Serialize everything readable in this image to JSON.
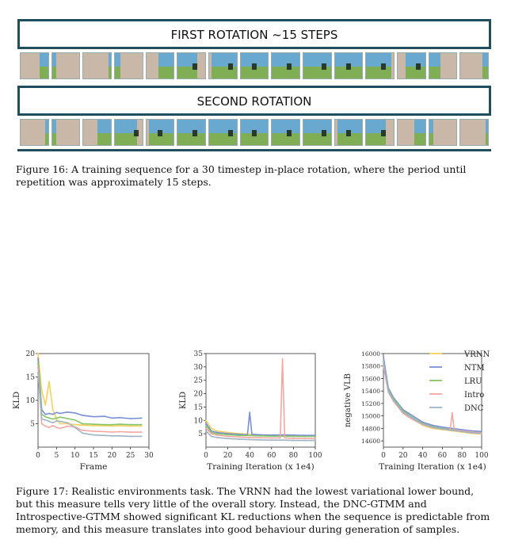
{
  "figure16": {
    "title1": "FIRST ROTATION ~15 STEPS",
    "title2": "SECOND ROTATION",
    "caption": "Figure 16: A training sequence for a 30 timestep in-place rotation, where the period until repetition was approximately 15 steps."
  },
  "figure17": {
    "caption": "Figure 17: Realistic environments task. The VRNN had the lowest variational lower bound, but this measure tells very little of the overall story. Instead, the DNC-GTMM and Introspective-GTMM showed significant KL reductions when the sequence is predictable from memory, and this measure translates into good behaviour during generation of samples."
  },
  "colors": {
    "VRNN": "#f3d15c",
    "NTM": "#7b8fd6",
    "LRU": "#86c56a",
    "Intro": "#f2a8a0",
    "DNC": "#9fb4c4",
    "spike": "#e64a3a"
  },
  "chart_data": [
    {
      "type": "line",
      "xlabel": "Frame",
      "ylabel": "KLD",
      "xlim": [
        0,
        30
      ],
      "ylim": [
        0,
        20
      ],
      "xticks": [
        "0",
        "5",
        "10",
        "15",
        "20",
        "25",
        "30"
      ],
      "yticks": [
        "5",
        "10",
        "15",
        "20"
      ],
      "series": [
        {
          "name": "VRNN",
          "x": [
            0,
            1,
            2,
            3,
            4,
            5,
            6,
            8,
            10,
            12,
            15,
            18,
            20,
            22,
            25,
            28
          ],
          "values": [
            20,
            12,
            9,
            14,
            8,
            6,
            5,
            5,
            4.8,
            4.7,
            4.6,
            4.6,
            4.5,
            4.6,
            4.5,
            4.5
          ]
        },
        {
          "name": "NTM",
          "x": [
            0,
            1,
            2,
            3,
            4,
            5,
            6,
            8,
            10,
            12,
            15,
            18,
            20,
            22,
            25,
            28
          ],
          "values": [
            19,
            8,
            7,
            7.2,
            7,
            7.4,
            7.2,
            7.5,
            7.3,
            6.8,
            6.5,
            6.6,
            6.2,
            6.3,
            6.1,
            6.2
          ]
        },
        {
          "name": "LRU",
          "x": [
            0,
            1,
            2,
            3,
            4,
            5,
            6,
            8,
            10,
            12,
            15,
            18,
            20,
            22,
            25,
            28
          ],
          "values": [
            18,
            7,
            6.5,
            6.2,
            6,
            6.2,
            6.4,
            6.1,
            5.8,
            5,
            4.9,
            4.8,
            4.8,
            4.9,
            4.8,
            4.8
          ]
        },
        {
          "name": "Intro",
          "x": [
            0,
            1,
            2,
            3,
            4,
            5,
            6,
            8,
            10,
            12,
            15,
            18,
            20,
            22,
            25,
            28
          ],
          "values": [
            17,
            5,
            4.5,
            4.2,
            4.6,
            4.2,
            4,
            4.5,
            4.3,
            3.6,
            3.4,
            3.3,
            3.2,
            3.3,
            3.2,
            3.2
          ]
        },
        {
          "name": "DNC",
          "x": [
            0,
            1,
            2,
            3,
            4,
            5,
            6,
            8,
            10,
            12,
            15,
            18,
            20,
            22,
            25,
            28
          ],
          "values": [
            16,
            6,
            5.8,
            5.5,
            5.2,
            5.6,
            5.5,
            5.2,
            4.2,
            3,
            2.6,
            2.5,
            2.4,
            2.4,
            2.3,
            2.3
          ]
        }
      ]
    },
    {
      "type": "line",
      "xlabel": "Training Iteration (x 1e4)",
      "ylabel": "KLD",
      "xlim": [
        0,
        100
      ],
      "ylim": [
        0,
        35
      ],
      "xticks": [
        "0",
        "20",
        "40",
        "60",
        "80",
        "100"
      ],
      "yticks": [
        "5",
        "10",
        "15",
        "20",
        "25",
        "30",
        "35"
      ],
      "series": [
        {
          "name": "VRNN",
          "x": [
            0,
            5,
            10,
            20,
            30,
            40,
            50,
            60,
            70,
            80,
            90,
            100
          ],
          "values": [
            10,
            7,
            6,
            5.5,
            5,
            4.8,
            4.6,
            4.5,
            4.4,
            4.3,
            4.3,
            4.2
          ]
        },
        {
          "name": "NTM",
          "x": [
            0,
            5,
            10,
            20,
            30,
            38,
            40,
            42,
            50,
            60,
            70,
            80,
            90,
            100
          ],
          "values": [
            9,
            6,
            5.5,
            5,
            4.8,
            4.6,
            13,
            4.8,
            4.6,
            4.5,
            4.6,
            4.5,
            4.4,
            4.4
          ]
        },
        {
          "name": "LRU",
          "x": [
            0,
            5,
            10,
            20,
            30,
            40,
            50,
            60,
            70,
            80,
            90,
            100
          ],
          "values": [
            8,
            5.5,
            5,
            4.6,
            4.4,
            4.3,
            4.2,
            4.1,
            4.1,
            4,
            4,
            4
          ]
        },
        {
          "name": "Intro",
          "x": [
            0,
            5,
            10,
            20,
            30,
            40,
            50,
            60,
            68,
            70,
            72,
            80,
            90,
            100
          ],
          "values": [
            7,
            5,
            4.5,
            4,
            3.8,
            3.6,
            3.5,
            3.4,
            3.4,
            33,
            3.4,
            3.3,
            3.3,
            3.2
          ]
        },
        {
          "name": "DNC",
          "x": [
            0,
            5,
            10,
            20,
            30,
            40,
            50,
            60,
            70,
            80,
            90,
            100
          ],
          "values": [
            6,
            4,
            3.6,
            3.2,
            3,
            2.8,
            2.7,
            2.6,
            2.6,
            2.5,
            2.5,
            2.5
          ]
        }
      ]
    },
    {
      "type": "line",
      "xlabel": "Training Iteration (x 1e4)",
      "ylabel": "negative VLB",
      "xlim": [
        0,
        100
      ],
      "ylim": [
        14500,
        16000
      ],
      "xticks": [
        "0",
        "20",
        "40",
        "60",
        "80",
        "100"
      ],
      "yticks": [
        "14600",
        "14800",
        "15000",
        "15200",
        "15400",
        "15600",
        "15800",
        "16000"
      ],
      "legend": [
        "VRNN",
        "NTM",
        "LRU",
        "Intro",
        "DNC"
      ],
      "legend_position": "top-right",
      "series": [
        {
          "name": "VRNN",
          "x": [
            0,
            5,
            10,
            20,
            30,
            40,
            50,
            60,
            70,
            80,
            90,
            100
          ],
          "values": [
            15900,
            15400,
            15250,
            15050,
            14950,
            14850,
            14800,
            14780,
            14760,
            14740,
            14720,
            14710
          ]
        },
        {
          "name": "NTM",
          "x": [
            0,
            5,
            10,
            20,
            30,
            40,
            50,
            60,
            70,
            80,
            90,
            100
          ],
          "values": [
            15950,
            15450,
            15300,
            15100,
            15000,
            14900,
            14850,
            14820,
            14800,
            14780,
            14760,
            14750
          ]
        },
        {
          "name": "LRU",
          "x": [
            0,
            5,
            10,
            20,
            30,
            40,
            50,
            60,
            70,
            80,
            90,
            100
          ],
          "values": [
            15850,
            15420,
            15280,
            15080,
            14970,
            14880,
            14830,
            14800,
            14780,
            14760,
            14740,
            14730
          ]
        },
        {
          "name": "Intro",
          "x": [
            0,
            5,
            10,
            20,
            30,
            40,
            50,
            60,
            68,
            70,
            72,
            80,
            90,
            100
          ],
          "values": [
            15800,
            15380,
            15240,
            15040,
            14940,
            14860,
            14810,
            14790,
            14780,
            15050,
            14780,
            14760,
            14740,
            14730
          ]
        },
        {
          "name": "DNC",
          "x": [
            0,
            5,
            10,
            20,
            30,
            40,
            50,
            60,
            70,
            80,
            90,
            100
          ],
          "values": [
            15880,
            15400,
            15260,
            15060,
            14960,
            14870,
            14820,
            14790,
            14770,
            14750,
            14730,
            14720
          ]
        }
      ]
    }
  ]
}
